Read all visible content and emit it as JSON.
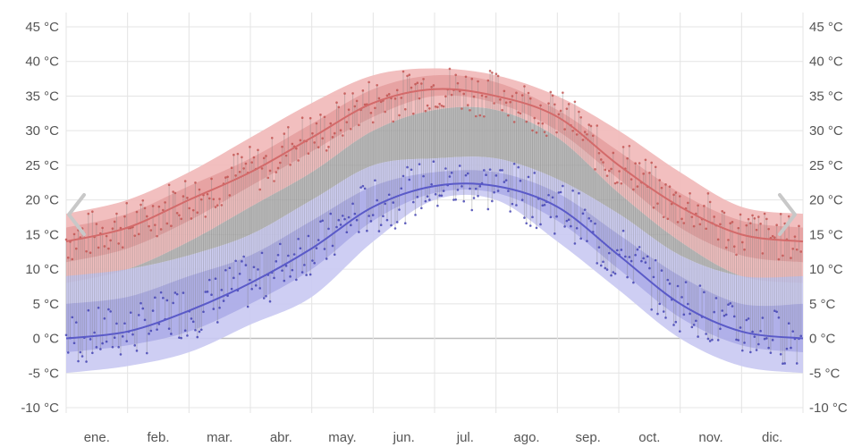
{
  "colors": {
    "high": "#d36a6a",
    "low": "#5a5ac8",
    "high_band_outer": "#f1b8b8",
    "high_band_inner": "#e49c9c",
    "low_band_outer": "#c9c9f2",
    "low_band_inner": "#a9a9e6",
    "middle_band": "#a4a4a4",
    "grid": "#e4e4e4",
    "zero_line": "#bdbdbd",
    "axis_text": "#555555"
  },
  "navigation": {
    "prev_icon": "chevron-left-icon",
    "next_icon": "chevron-right-icon"
  },
  "chart_data": {
    "type": "area",
    "title": "",
    "xlabel": "",
    "ylabel": "",
    "ylim": [
      -10,
      45
    ],
    "y_ticks": [
      45,
      40,
      35,
      30,
      25,
      20,
      15,
      10,
      5,
      0,
      -5,
      -10
    ],
    "y_tick_labels_left": [
      "45 °C",
      "40 °C",
      "35 °C",
      "30 °C",
      "25 °C",
      "20 °C",
      "15 °C",
      "10 °C",
      "5 °C",
      "0 °C",
      "-5 °C",
      "-10 °C"
    ],
    "y_tick_labels_right": [
      "45 °C",
      "40 °C",
      "35 °C",
      "30 °C",
      "25 °C",
      "20 °C",
      "15 °C",
      "10 °C",
      "5 °C",
      "0 °C",
      "-5 °C",
      "-10 °C"
    ],
    "x_range": [
      0,
      12
    ],
    "categories": [
      "ene.",
      "feb.",
      "mar.",
      "abr.",
      "may.",
      "jun.",
      "jul.",
      "ago.",
      "sep.",
      "oct.",
      "nov.",
      "dic."
    ],
    "grid": true,
    "series": [
      {
        "key": "high_band_outer",
        "x": [
          0,
          1,
          2,
          3,
          4,
          5,
          6,
          7,
          8,
          9,
          10,
          11,
          12
        ],
        "upper": [
          18,
          20,
          24,
          29,
          34,
          38,
          39,
          38,
          35,
          30,
          24,
          19,
          18
        ],
        "lower": [
          8,
          10,
          14,
          19,
          24,
          30,
          33,
          33,
          29,
          21,
          14,
          9,
          8
        ]
      },
      {
        "key": "high_band_inner",
        "x": [
          0,
          1,
          2,
          3,
          4,
          5,
          6,
          7,
          8,
          9,
          10,
          11,
          12
        ],
        "upper": [
          16,
          18,
          22,
          26,
          31,
          36,
          38,
          37,
          33,
          27,
          21,
          17,
          16
        ],
        "lower": [
          11,
          13,
          17,
          22,
          27,
          32,
          35,
          34,
          30,
          23,
          16,
          12,
          11
        ]
      },
      {
        "key": "low_band_outer",
        "x": [
          0,
          1,
          2,
          3,
          4,
          5,
          6,
          7,
          8,
          9,
          10,
          11,
          12
        ],
        "upper": [
          9,
          10,
          12,
          15,
          20,
          25,
          26,
          26,
          23,
          18,
          12,
          9,
          9
        ],
        "lower": [
          -5,
          -4,
          -2,
          2,
          6,
          14,
          20,
          20,
          14,
          7,
          0,
          -4,
          -5
        ]
      },
      {
        "key": "low_band_inner",
        "x": [
          0,
          1,
          2,
          3,
          4,
          5,
          6,
          7,
          8,
          9,
          10,
          11,
          12
        ],
        "upper": [
          5,
          6,
          9,
          12,
          17,
          22,
          24,
          24,
          21,
          15,
          9,
          5,
          5
        ],
        "lower": [
          -2,
          -1,
          1,
          5,
          10,
          17,
          21,
          21,
          17,
          10,
          3,
          -1,
          -2
        ]
      },
      {
        "name": "",
        "key": "avg_high",
        "x": [
          0,
          1,
          2,
          3,
          4,
          5,
          6,
          7,
          8,
          9,
          10,
          11,
          12
        ],
        "values": [
          14,
          16,
          20,
          24,
          29,
          34,
          36,
          35,
          32,
          25,
          19,
          15,
          14
        ]
      },
      {
        "name": "",
        "key": "avg_low",
        "x": [
          0,
          1,
          2,
          3,
          4,
          5,
          6,
          7,
          8,
          9,
          10,
          11,
          12
        ],
        "values": [
          0,
          1,
          4,
          8,
          13,
          19,
          22,
          22,
          19,
          12,
          5,
          1,
          0
        ]
      }
    ]
  }
}
